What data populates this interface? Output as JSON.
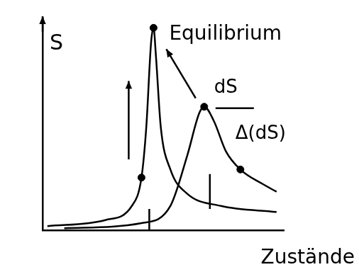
{
  "chart_data": {
    "type": "line",
    "y_label": "S",
    "x_label": "Zustände",
    "annotations": [
      "Equilibrium",
      "dS",
      "Δ(dS)"
    ],
    "xlim": [
      0,
      10
    ],
    "ylim": [
      0,
      10.5
    ],
    "tick_labels": false,
    "grid": false,
    "series": [
      {
        "color": "#000000",
        "line_style": "solid",
        "x": [
          0.2,
          2.6,
          3.7,
          4.1,
          4.3,
          4.5,
          4.6,
          4.7,
          4.9,
          5.3,
          6.0,
          7.4,
          9.7
        ],
        "values": [
          0.2,
          0.5,
          1.2,
          2.6,
          5.1,
          9.3,
          10,
          8.6,
          5.1,
          3.0,
          1.8,
          1.2,
          0.9
        ]
      },
      {
        "color": "#000000",
        "line_style": "solid",
        "x": [
          0.9,
          4.1,
          5.3,
          6.0,
          6.5,
          6.7,
          7.1,
          7.6,
          8.2,
          9.1,
          9.7
        ],
        "values": [
          0.1,
          0.35,
          1.2,
          3.7,
          5.8,
          6.1,
          5.4,
          3.9,
          3.0,
          2.3,
          1.9
        ]
      },
      {
        "type": "scatter",
        "marker": "circle",
        "color": "#000000",
        "x": [
          4.1,
          4.6,
          6.7,
          8.2
        ],
        "values": [
          2.6,
          10,
          6.1,
          3.0
        ]
      }
    ]
  }
}
